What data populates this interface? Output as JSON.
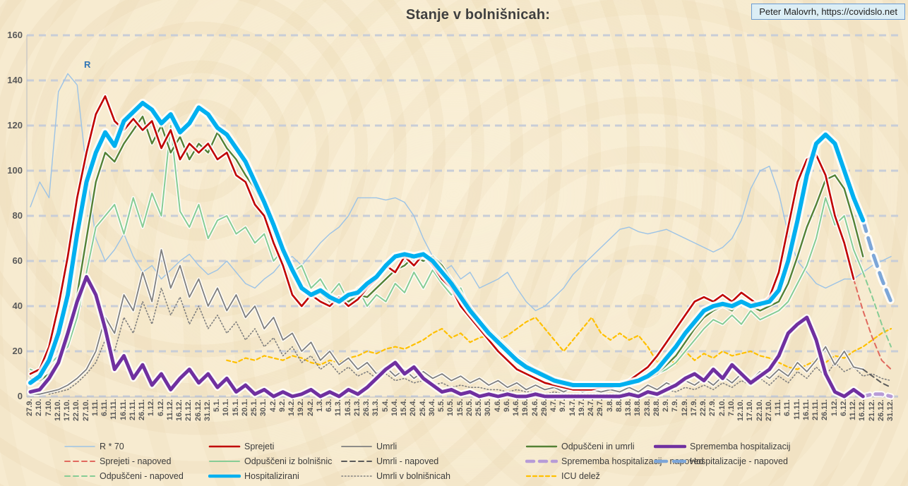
{
  "title": "Stanje v bolnišnicah:",
  "attribution": "Peter Malovrh, https://covidslo.net",
  "annotations": {
    "r_label": "R"
  },
  "colors": {
    "background": "#f7ebd0",
    "grid": "#c8cdd7",
    "axis": "#b8bcc4",
    "tick_text": "#595959",
    "title_text": "#3f3f3f",
    "r_note": "#2e74b5",
    "attribution_bg": "#dceef5",
    "attribution_border": "#6b9bd2"
  },
  "axes": {
    "y_ticks": [
      0,
      20,
      40,
      60,
      80,
      100,
      120,
      140,
      160
    ]
  },
  "legend": {
    "rows": [
      [
        "r70",
        "sprejeti",
        "umrli",
        "odpusceni_in_umrli",
        "sprememba"
      ],
      [
        "sprejeti_napoved",
        "odpusceni_iz_bolnisnic",
        "umrli_napoved",
        "sprememba_napoved",
        "hospitalizacije_napoved"
      ],
      [
        "odpusceni_napoved",
        "hospitalizirani",
        "umrli_v_bolnisnicah",
        "icu_delez"
      ]
    ]
  },
  "chart_data": {
    "type": "line",
    "title": "Stanje v bolnišnicah:",
    "xlabel": "",
    "ylabel": "",
    "ylim": [
      0,
      160
    ],
    "grid": "horizontal-dashed",
    "legend_position": "bottom",
    "categories": [
      "27.9.",
      "2.10.",
      "7.10.",
      "12.10.",
      "17.10.",
      "22.10.",
      "27.10.",
      "1.11.",
      "6.11.",
      "11.11.",
      "16.11.",
      "21.11.",
      "26.11.",
      "1.12.",
      "6.12.",
      "11.12.",
      "16.12.",
      "21.12.",
      "26.12.",
      "31.12.",
      "5.1.",
      "10.1.",
      "15.1.",
      "20.1.",
      "25.1.",
      "30.1.",
      "4.2.",
      "9.2.",
      "14.2.",
      "19.2.",
      "24.2.",
      "1.3.",
      "6.3.",
      "11.3.",
      "16.3.",
      "21.3.",
      "26.3.",
      "31.3.",
      "5.4.",
      "10.4.",
      "15.4.",
      "20.4.",
      "25.4.",
      "30.4.",
      "5.5.",
      "10.5.",
      "15.5.",
      "20.5.",
      "25.5.",
      "30.5.",
      "4.6.",
      "9.6.",
      "14.6.",
      "19.6.",
      "24.6.",
      "29.6.",
      "4.7.",
      "9.7.",
      "14.7.",
      "19.7.",
      "24.7.",
      "29.7.",
      "3.8.",
      "8.8.",
      "13.8.",
      "18.8.",
      "23.8.",
      "28.8.",
      "2.9.",
      "7.9.",
      "12.9.",
      "17.9.",
      "22.9.",
      "27.9.",
      "2.10.",
      "7.10.",
      "12.10.",
      "17.10.",
      "22.10.",
      "27.10.",
      "1.11.",
      "6.11.",
      "11.11.",
      "16.11.",
      "21.11.",
      "26.11.",
      "1.12.",
      "6.12.",
      "11.12.",
      "16.12.",
      "21.12.",
      "26.12.",
      "31.12."
    ],
    "series": [
      {
        "id": "r70",
        "label": "R * 70",
        "color": "#9cc3e6",
        "width": 1.4,
        "dash": null,
        "glow": 0,
        "offset": 0,
        "values": [
          84,
          95,
          88,
          135,
          143,
          138,
          100,
          70,
          60,
          65,
          72,
          62,
          55,
          58,
          52,
          56,
          60,
          63,
          58,
          54,
          56,
          60,
          55,
          50,
          48,
          52,
          55,
          60,
          62,
          58,
          63,
          68,
          72,
          75,
          80,
          88,
          88,
          88,
          87,
          88,
          86,
          80,
          70,
          62,
          55,
          58,
          52,
          55,
          48,
          50,
          52,
          55,
          48,
          42,
          38,
          40,
          44,
          48,
          54,
          58,
          62,
          66,
          70,
          74,
          75,
          73,
          72,
          73,
          74,
          72,
          70,
          68,
          66,
          64,
          66,
          70,
          78,
          92,
          100,
          102,
          90,
          72,
          60,
          55,
          50,
          48,
          50,
          52,
          52,
          55,
          58,
          60,
          62
        ]
      },
      {
        "id": "icu_delez",
        "label": "ICU delež",
        "color": "#ffc000",
        "width": 2.2,
        "dash": [
          5,
          4
        ],
        "glow": 0,
        "offset": 21,
        "values": [
          16,
          15,
          17,
          16,
          18,
          17,
          16,
          18,
          17,
          15,
          14,
          16,
          15,
          17,
          18,
          20,
          19,
          21,
          22,
          21,
          23,
          25,
          28,
          30,
          26,
          28,
          24,
          26,
          27,
          25,
          27,
          30,
          33,
          35,
          30,
          25,
          20,
          25,
          30,
          35,
          28,
          25,
          28,
          25,
          27,
          22,
          15,
          18,
          14,
          20,
          16,
          19,
          17,
          20,
          18,
          19,
          20,
          18,
          17,
          15,
          13,
          12,
          14,
          16,
          15,
          18,
          17,
          20,
          22,
          25,
          28,
          30
        ]
      },
      {
        "id": "umrli_v_bolnisnicah",
        "label": "Umrli v bolnišnicah",
        "color": "#7f7f7f",
        "width": 1.6,
        "dash": [
          1.5,
          3
        ],
        "glow": 0,
        "offset": 2,
        "values": [
          1,
          2,
          3,
          6,
          10,
          15,
          25,
          20,
          35,
          28,
          42,
          32,
          48,
          36,
          44,
          32,
          40,
          30,
          36,
          28,
          33,
          25,
          30,
          22,
          26,
          18,
          22,
          15,
          18,
          12,
          15,
          10,
          13,
          9,
          11,
          8,
          10,
          7,
          8,
          6,
          7,
          5,
          6,
          4,
          5,
          4,
          4,
          3,
          3,
          2,
          3,
          2,
          2,
          1,
          2,
          1,
          1,
          1,
          1,
          1,
          1,
          1,
          2,
          1,
          2,
          2,
          3,
          2,
          4,
          3,
          5,
          3,
          6,
          4,
          7,
          5,
          8,
          5,
          9,
          6,
          11,
          8,
          13,
          9,
          15,
          11,
          13,
          9,
          10,
          8,
          7
        ]
      },
      {
        "id": "umrli",
        "label": "Umrli",
        "color": "#7f7f7f",
        "width": 1.8,
        "dash": null,
        "glow": 3,
        "offset": 0,
        "values": [
          1,
          1,
          2,
          3,
          5,
          8,
          12,
          20,
          35,
          28,
          45,
          38,
          55,
          42,
          65,
          48,
          58,
          44,
          52,
          40,
          48,
          38,
          45,
          35,
          40,
          30,
          35,
          25,
          28,
          20,
          24,
          16,
          20,
          14,
          17,
          12,
          15,
          10,
          13,
          9,
          12,
          8,
          11,
          8,
          10,
          7,
          9,
          6,
          8,
          5,
          7,
          4,
          6,
          3,
          5,
          3,
          4,
          2,
          4,
          2,
          3,
          2,
          3,
          2,
          4,
          2,
          5,
          3,
          6,
          4,
          7,
          5,
          8,
          5,
          9,
          6,
          10,
          7,
          11,
          8,
          12,
          9,
          15,
          11,
          16,
          22,
          14,
          20,
          13,
          12
        ]
      },
      {
        "id": "umrli_napoved",
        "label": "Umrli - napoved",
        "color": "#5a5a5a",
        "width": 2,
        "dash": [
          7,
          5
        ],
        "glow": 0,
        "offset": 89,
        "values": [
          12,
          9,
          6,
          4
        ]
      },
      {
        "id": "odpusceni_iz_bolnisnic",
        "label": "Odpuščeni iz bolnišnic",
        "color": "#86cc95",
        "width": 2,
        "dash": null,
        "glow": 3,
        "offset": 0,
        "values": [
          12,
          10,
          14,
          18,
          22,
          35,
          55,
          75,
          80,
          85,
          72,
          88,
          75,
          90,
          80,
          120,
          82,
          75,
          85,
          70,
          78,
          80,
          72,
          75,
          68,
          72,
          60,
          65,
          55,
          58,
          48,
          52,
          45,
          50,
          42,
          48,
          40,
          45,
          42,
          50,
          46,
          55,
          48,
          56,
          50,
          45,
          48,
          38,
          35,
          30,
          26,
          22,
          18,
          15,
          12,
          10,
          8,
          7,
          6,
          5,
          5,
          4,
          5,
          5,
          6,
          6,
          8,
          10,
          12,
          15,
          20,
          25,
          30,
          34,
          32,
          36,
          32,
          38,
          34,
          36,
          38,
          42,
          50,
          58,
          70,
          88,
          76,
          80,
          65,
          55
        ]
      },
      {
        "id": "odpusceni_napoved",
        "label": "Odpuščeni - napoved",
        "color": "#86cc95",
        "width": 2,
        "dash": [
          7,
          5
        ],
        "glow": 0,
        "offset": 89,
        "values": [
          55,
          44,
          32,
          22
        ]
      },
      {
        "id": "odpusceni_in_umrli",
        "label": "Odpuščeni in umrli",
        "color": "#538135",
        "width": 2.4,
        "dash": null,
        "glow": 3,
        "offset": 0,
        "values": [
          8,
          7,
          10,
          15,
          25,
          45,
          70,
          95,
          108,
          104,
          112,
          118,
          124,
          112,
          120,
          108,
          115,
          105,
          112,
          108,
          117,
          110,
          105,
          98,
          92,
          85,
          75,
          64,
          55,
          48,
          44,
          46,
          42,
          44,
          42,
          45,
          44,
          48,
          52,
          56,
          58,
          62,
          60,
          62,
          58,
          52,
          46,
          40,
          34,
          28,
          24,
          20,
          17,
          14,
          12,
          10,
          8,
          6,
          5,
          5,
          4,
          4,
          5,
          5,
          6,
          7,
          8,
          10,
          14,
          18,
          24,
          30,
          35,
          38,
          40,
          38,
          42,
          40,
          38,
          40,
          42,
          50,
          62,
          75,
          85,
          96,
          98,
          92,
          78,
          62
        ]
      },
      {
        "id": "sprejeti_napoved",
        "label": "Sprejeti - napoved",
        "color": "#e0695e",
        "width": 2,
        "dash": [
          7,
          5
        ],
        "glow": 0,
        "offset": 88,
        "values": [
          52,
          38,
          26,
          16,
          12
        ]
      },
      {
        "id": "sprejeti",
        "label": "Sprejeti",
        "color": "#c00000",
        "width": 2.6,
        "dash": null,
        "glow": 4,
        "offset": 0,
        "values": [
          10,
          12,
          22,
          40,
          62,
          88,
          108,
          125,
          133,
          122,
          118,
          123,
          118,
          122,
          110,
          118,
          105,
          112,
          108,
          112,
          105,
          108,
          98,
          95,
          85,
          80,
          68,
          58,
          45,
          40,
          45,
          42,
          40,
          44,
          40,
          43,
          48,
          52,
          58,
          55,
          62,
          58,
          63,
          58,
          52,
          48,
          40,
          35,
          30,
          25,
          20,
          16,
          12,
          10,
          8,
          6,
          5,
          4,
          3,
          3,
          3,
          4,
          4,
          5,
          7,
          10,
          13,
          18,
          24,
          30,
          36,
          42,
          44,
          42,
          45,
          42,
          46,
          43,
          40,
          44,
          55,
          75,
          95,
          105,
          107,
          98,
          80,
          68,
          52
        ]
      },
      {
        "id": "sprememba_napoved",
        "label": "Sprememba hospitalizacij - napoved",
        "color": "#b79bd7",
        "width": 5,
        "dash": [
          10,
          8
        ],
        "glow": 4,
        "offset": 89,
        "values": [
          0,
          1,
          1,
          0
        ]
      },
      {
        "id": "hospitalizacije_napoved",
        "label": "Hospitalizacije - napoved",
        "color": "#7ca6d8",
        "width": 5,
        "dash": [
          16,
          10
        ],
        "glow": 6,
        "offset": 89,
        "values": [
          78,
          64,
          52,
          42
        ]
      },
      {
        "id": "sprememba",
        "label": "Sprememba hospitalizacij",
        "color": "#7030a0",
        "width": 5,
        "dash": null,
        "glow": 5,
        "offset": 0,
        "values": [
          2,
          3,
          8,
          15,
          28,
          42,
          53,
          45,
          30,
          12,
          18,
          8,
          14,
          5,
          10,
          3,
          8,
          12,
          6,
          10,
          4,
          8,
          2,
          5,
          1,
          3,
          0,
          2,
          0,
          1,
          3,
          0,
          2,
          0,
          3,
          1,
          4,
          8,
          12,
          15,
          10,
          13,
          8,
          5,
          2,
          3,
          1,
          2,
          0,
          1,
          0,
          1,
          0,
          0,
          1,
          0,
          0,
          0,
          0,
          0,
          0,
          0,
          0,
          0,
          1,
          0,
          2,
          1,
          3,
          5,
          8,
          10,
          7,
          12,
          8,
          14,
          10,
          6,
          9,
          12,
          18,
          28,
          32,
          35,
          25,
          10,
          2,
          0,
          3,
          0
        ]
      },
      {
        "id": "hospitalizirani",
        "label": "Hospitalizirani",
        "color": "#00b0f0",
        "width": 6,
        "dash": null,
        "glow": 6,
        "offset": 0,
        "values": [
          6,
          9,
          16,
          28,
          45,
          72,
          95,
          108,
          117,
          111,
          122,
          126,
          130,
          127,
          121,
          125,
          117,
          121,
          128,
          125,
          119,
          116,
          110,
          104,
          95,
          86,
          76,
          65,
          56,
          48,
          45,
          47,
          44,
          42,
          45,
          46,
          50,
          53,
          58,
          62,
          63,
          62,
          63,
          60,
          55,
          50,
          44,
          38,
          33,
          28,
          24,
          20,
          16,
          13,
          11,
          9,
          7,
          6,
          5,
          5,
          5,
          5,
          5,
          5,
          6,
          7,
          9,
          12,
          17,
          22,
          28,
          33,
          38,
          40,
          41,
          40,
          42,
          40,
          41,
          42,
          47,
          60,
          78,
          98,
          112,
          116,
          112,
          100,
          88,
          78
        ]
      }
    ]
  }
}
